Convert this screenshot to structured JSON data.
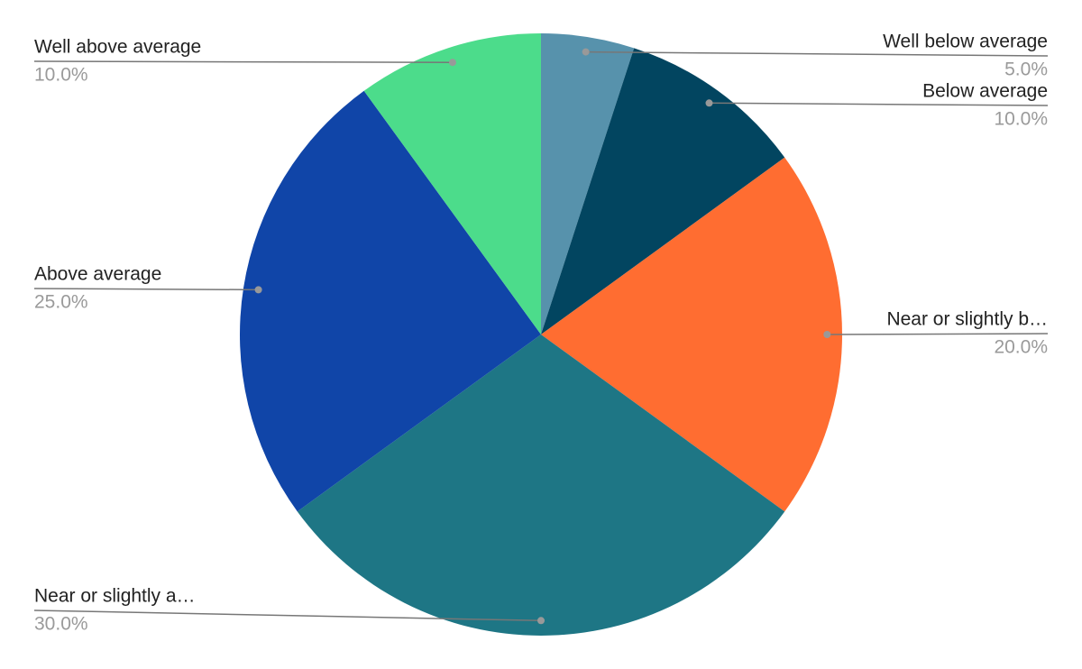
{
  "chart_data": {
    "type": "pie",
    "categories": [
      "Well below average",
      "Below average",
      "Near or slightly b…",
      "Near or slightly a…",
      "Above average",
      "Well above average"
    ],
    "values": [
      5,
      10,
      20,
      30,
      25,
      10
    ],
    "value_labels": [
      "5.0%",
      "10.0%",
      "20.0%",
      "30.0%",
      "25.0%",
      "10.0%"
    ],
    "colors": [
      "#5792ac",
      "#024560",
      "#ff6d31",
      "#1e7685",
      "#1045a8",
      "#4cdc8b"
    ]
  }
}
